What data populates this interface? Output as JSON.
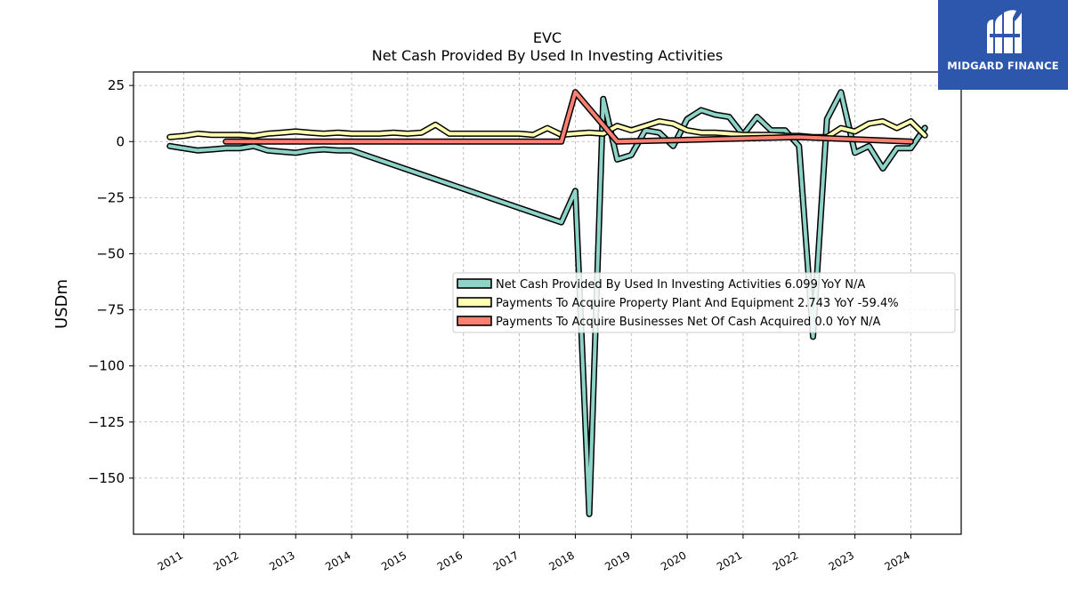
{
  "chart_data": {
    "type": "line",
    "title": "EVC",
    "subtitle": "Net Cash Provided By Used In Investing Activities",
    "xlabel": "",
    "ylabel": "USDm",
    "x_ticks": [
      "2011",
      "2012",
      "2013",
      "2014",
      "2015",
      "2016",
      "2017",
      "2018",
      "2019",
      "2020",
      "2021",
      "2022",
      "2023",
      "2024"
    ],
    "y_ticks": [
      25,
      0,
      -25,
      -50,
      -75,
      -100,
      -125,
      -150
    ],
    "y_tick_labels": [
      "25",
      "0",
      "−25",
      "−50",
      "−75",
      "−100",
      "−125",
      "−150"
    ],
    "xlim": [
      2010.1,
      2024.9
    ],
    "ylim": [
      -175,
      31
    ],
    "grid": true,
    "legend_position": "center-right",
    "series": [
      {
        "name": "Net Cash Provided By Used In Investing Activities",
        "legend_label": "Net Cash Provided By Used In Investing Activities  6.099 YoY N/A",
        "color": "#8dd3c7",
        "x": [
          2010.75,
          2011.0,
          2011.25,
          2011.5,
          2011.75,
          2012.0,
          2012.25,
          2012.5,
          2012.75,
          2013.0,
          2013.25,
          2013.5,
          2013.75,
          2014.0,
          2017.75,
          2018.0,
          2018.25,
          2018.5,
          2018.75,
          2019.0,
          2019.25,
          2019.5,
          2019.75,
          2020.0,
          2020.25,
          2020.5,
          2020.75,
          2021.0,
          2021.25,
          2021.5,
          2021.75,
          2022.0,
          2022.25,
          2022.5,
          2022.75,
          2023.0,
          2023.25,
          2023.5,
          2023.75,
          2024.0,
          2024.25
        ],
        "values": [
          -2,
          -3,
          -4,
          -3.5,
          -3,
          -3,
          -2,
          -4,
          -4.5,
          -5,
          -4,
          -3.5,
          -4,
          -4,
          -36,
          -22,
          -166,
          19,
          -8,
          -6,
          5,
          4,
          -2,
          10,
          14,
          12,
          11,
          3,
          11,
          5,
          5,
          -2,
          -87,
          10,
          22,
          -5,
          -2,
          -12,
          -3,
          -3,
          6.099
        ]
      },
      {
        "name": "Payments To Acquire Property Plant And Equipment",
        "legend_label": "Payments To Acquire Property Plant And Equipment  2.743 YoY -59.4%",
        "color": "#ffffb3",
        "x": [
          2010.75,
          2011.0,
          2011.25,
          2011.5,
          2011.75,
          2012.0,
          2012.25,
          2012.5,
          2012.75,
          2013.0,
          2013.25,
          2013.5,
          2013.75,
          2014.0,
          2014.25,
          2014.5,
          2014.75,
          2015.0,
          2015.25,
          2015.5,
          2015.75,
          2016.0,
          2016.25,
          2016.5,
          2016.75,
          2017.0,
          2017.25,
          2017.5,
          2017.75,
          2018.0,
          2018.25,
          2018.5,
          2018.75,
          2019.0,
          2019.25,
          2019.5,
          2019.75,
          2020.0,
          2020.25,
          2020.5,
          2020.75,
          2021.0,
          2021.25,
          2021.5,
          2021.75,
          2022.0,
          2022.25,
          2022.5,
          2022.75,
          2023.0,
          2023.25,
          2023.5,
          2023.75,
          2024.0,
          2024.25
        ],
        "values": [
          2,
          2.5,
          3.5,
          3,
          3,
          3,
          2.5,
          3.5,
          4,
          4.5,
          4,
          3.5,
          4,
          3.5,
          3.5,
          3.5,
          4,
          3.5,
          4,
          7.5,
          3.5,
          3.5,
          3.5,
          3.5,
          3.5,
          3.5,
          3,
          6,
          3,
          3.5,
          4,
          3.5,
          7,
          5,
          7,
          9,
          8,
          5,
          4,
          4,
          3.5,
          3,
          3,
          3,
          2.5,
          2.5,
          2,
          2,
          6,
          4.5,
          8,
          9,
          6,
          9,
          2.743
        ]
      },
      {
        "name": "Payments To Acquire Businesses Net Of Cash Acquired",
        "legend_label": "Payments To Acquire Businesses Net Of Cash Acquired  0.0 YoY N/A",
        "color": "#fb8072",
        "x": [
          2011.75,
          2017.75,
          2018.0,
          2018.75,
          2022.0,
          2024.0
        ],
        "values": [
          0,
          0,
          22,
          0,
          2,
          0
        ]
      }
    ]
  },
  "branding": {
    "logo_text": "MIDGARD FINANCE"
  }
}
